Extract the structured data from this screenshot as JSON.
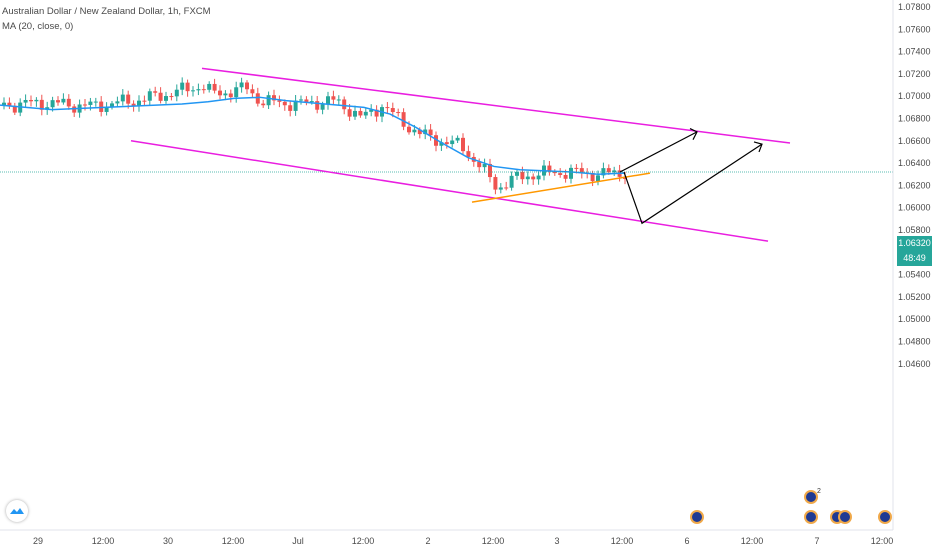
{
  "header": {
    "symbol_title": "Australian Dollar / New Zealand Dollar, 1h, FXCM",
    "indicator": "MA (20, close, 0)"
  },
  "price_axis": {
    "current_price": "1.06320",
    "countdown": "48:49"
  },
  "events": {
    "badge_count": "2"
  },
  "colors": {
    "up": "#26a69a",
    "down": "#ef5350",
    "ma": "#2196f3",
    "channel": "#e91ee0",
    "trendline": "#ff9800",
    "arrows": "#000000",
    "price_line": "#26a69a"
  },
  "chart_data": {
    "type": "candlestick",
    "title": "Australian Dollar / New Zealand Dollar, 1h, FXCM",
    "ylim": [
      1.045,
      1.079
    ],
    "y_ticks": [
      1.078,
      1.076,
      1.074,
      1.072,
      1.07,
      1.068,
      1.066,
      1.064,
      1.062,
      1.06,
      1.058,
      1.056,
      1.054,
      1.052,
      1.05,
      1.048,
      1.046
    ],
    "y_tick_labels": [
      "1.07800",
      "1.07600",
      "1.07400",
      "1.07200",
      "1.07000",
      "1.06800",
      "1.06600",
      "1.06400",
      "1.06200",
      "1.06000",
      "1.05800",
      "1.05600",
      "1.05400",
      "1.05200",
      "1.05000",
      "1.04800",
      "1.04600"
    ],
    "x_tick_labels": [
      "29",
      "12:00",
      "30",
      "12:00",
      "Jul",
      "12:00",
      "2",
      "12:00",
      "3",
      "12:00",
      "6",
      "12:00",
      "7",
      "12:00"
    ],
    "series": [
      {
        "name": "MA (20, close, 0)",
        "values": [
          1.0692,
          1.069,
          1.0688,
          1.0689,
          1.069,
          1.0691,
          1.0692,
          1.0693,
          1.0695,
          1.0698,
          1.0699,
          1.0696,
          1.0694,
          1.0692,
          1.069,
          1.0684,
          1.0672,
          1.0658,
          1.0645,
          1.0637,
          1.0634,
          1.0633,
          1.0632,
          1.063,
          1.0631
        ]
      }
    ],
    "annotations": [
      "descending channel (upper line ~1.0725 to ~1.0658)",
      "descending channel (lower line ~1.0660 to ~1.0570)",
      "rising support line ~1.0605 to ~1.0631",
      "projected path: up to ~1.0666",
      "projected path: down to ~1.0586 then up to ~1.0657"
    ],
    "current_price": 1.0632
  }
}
